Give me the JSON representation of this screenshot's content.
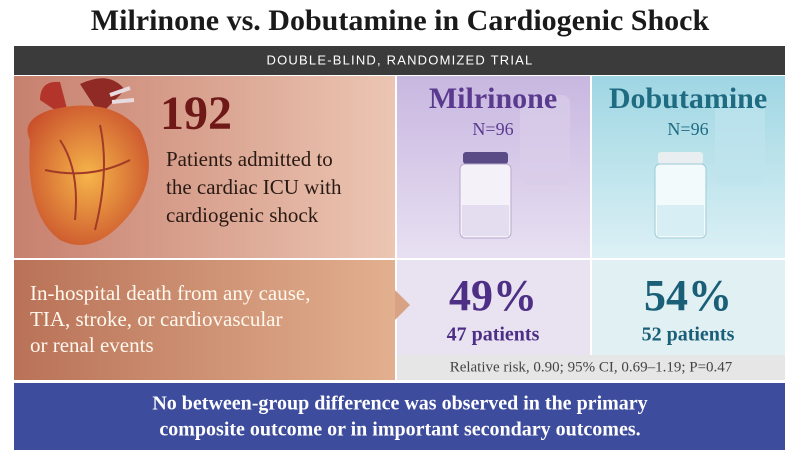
{
  "header": {
    "title": "Milrinone vs. Dobutamine in Cardiogenic Shock",
    "subtitle": "DOUBLE-BLIND, RANDOMIZED TRIAL"
  },
  "population": {
    "count": "192",
    "description": [
      "Patients admitted to",
      "the cardiac ICU with",
      "cardiogenic shock"
    ]
  },
  "arms": [
    {
      "name": "Milrinone",
      "n": "N=96",
      "result": "49%",
      "patients": "47 patients"
    },
    {
      "name": "Dobutamine",
      "n": "N=96",
      "result": "54%",
      "patients": "52 patients"
    }
  ],
  "outcome": {
    "lines": [
      "In-hospital death from any cause,",
      "TIA, stroke, or cardiovascular",
      "or renal events"
    ],
    "statistics": "Relative risk, 0.90; 95% CI, 0.69–1.19; P=0.47"
  },
  "conclusion": [
    "No between-group difference was observed in the primary",
    "composite outcome or in important secondary outcomes."
  ]
}
